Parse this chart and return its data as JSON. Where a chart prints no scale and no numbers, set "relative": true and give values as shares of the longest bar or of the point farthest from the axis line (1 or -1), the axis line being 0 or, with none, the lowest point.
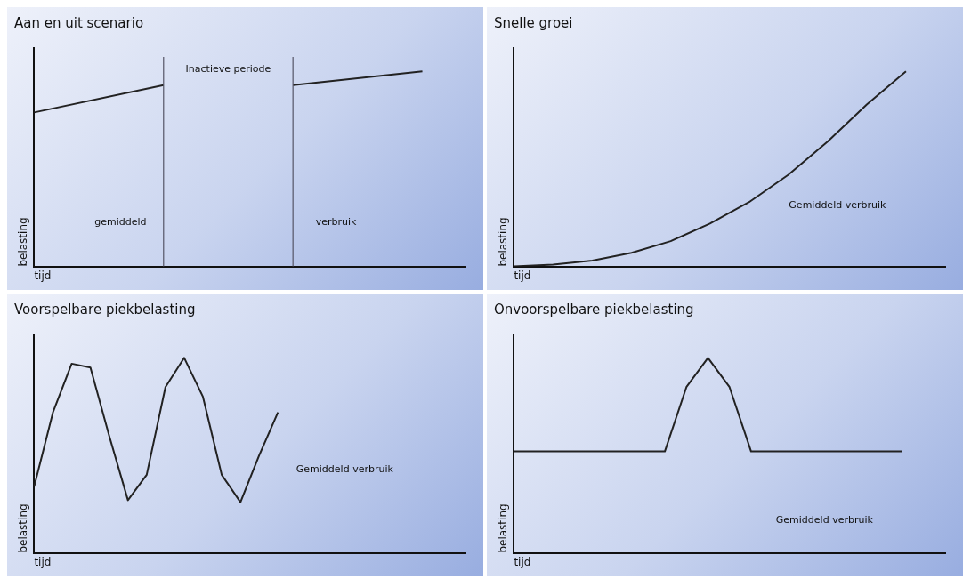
{
  "chart_data": [
    {
      "type": "line",
      "title": "Aan en uit scenario",
      "xlabel": "tijd",
      "ylabel": "belasting",
      "relative": true,
      "tick_labels": false,
      "grid": false,
      "legend": false,
      "marker": "none",
      "categories": [
        null,
        null,
        null,
        null,
        null,
        null,
        null,
        null,
        null,
        null,
        null
      ],
      "series": [
        {
          "color": "#222222",
          "values": [
            0.79,
            null,
            null,
            0.93,
            null,
            null,
            null,
            null,
            null,
            null,
            null
          ]
        },
        {
          "color": "#222222",
          "values": [
            null,
            null,
            null,
            null,
            null,
            null,
            0.93,
            null,
            null,
            1,
            null
          ]
        }
      ],
      "annotations": [
        "Inactieve periode",
        "gemiddeld",
        "verbruik"
      ]
    },
    {
      "type": "line",
      "title": "Snelle groei",
      "xlabel": "tijd",
      "ylabel": "belasting",
      "relative": true,
      "tick_labels": false,
      "grid": false,
      "legend": false,
      "marker": "none",
      "categories": [
        null,
        null,
        null,
        null,
        null,
        null,
        null,
        null,
        null,
        null,
        null,
        null
      ],
      "series": [
        {
          "color": "#222222",
          "values": [
            0,
            0.01,
            0.03,
            0.07,
            0.13,
            0.22,
            0.33,
            0.47,
            0.64,
            0.83,
            1,
            null
          ]
        }
      ],
      "annotations": [
        "Gemiddeld verbruik"
      ]
    },
    {
      "type": "line",
      "title": "Voorspelbare piekbelasting",
      "xlabel": "tijd",
      "ylabel": "belasting",
      "relative": true,
      "tick_labels": false,
      "grid": false,
      "legend": false,
      "marker": "none",
      "categories": [
        null,
        null,
        null,
        null,
        null,
        null,
        null,
        null,
        null,
        null,
        null,
        null,
        null,
        null,
        null,
        null,
        null,
        null,
        null,
        null,
        null,
        null,
        null,
        null
      ],
      "series": [
        {
          "color": "#222222",
          "values": [
            0.34,
            0.72,
            0.97,
            0.95,
            0.6,
            0.27,
            0.4,
            0.85,
            1,
            0.8,
            0.4,
            0.26,
            0.5,
            0.72,
            null,
            null,
            null,
            null,
            null,
            null,
            null,
            null,
            null,
            null
          ]
        }
      ],
      "annotations": [
        "Gemiddeld verbruik"
      ]
    },
    {
      "type": "line",
      "title": "Onvoorspelbare piekbelasting",
      "xlabel": "tijd",
      "ylabel": "belasting",
      "relative": true,
      "tick_labels": false,
      "grid": false,
      "legend": false,
      "marker": "none",
      "categories": [
        null,
        null,
        null,
        null,
        null,
        null,
        null,
        null,
        null,
        null,
        null,
        null,
        null,
        null,
        null,
        null,
        null,
        null,
        null,
        null,
        null
      ],
      "series": [
        {
          "color": "#222222",
          "values": [
            0.52,
            0.52,
            0.52,
            0.52,
            0.52,
            0.52,
            0.52,
            0.52,
            0.85,
            1,
            0.85,
            0.52,
            0.52,
            0.52,
            0.52,
            0.52,
            0.52,
            0.52,
            0.52,
            null,
            null
          ]
        }
      ],
      "annotations": [
        "Gemiddeld verbruik"
      ]
    }
  ]
}
